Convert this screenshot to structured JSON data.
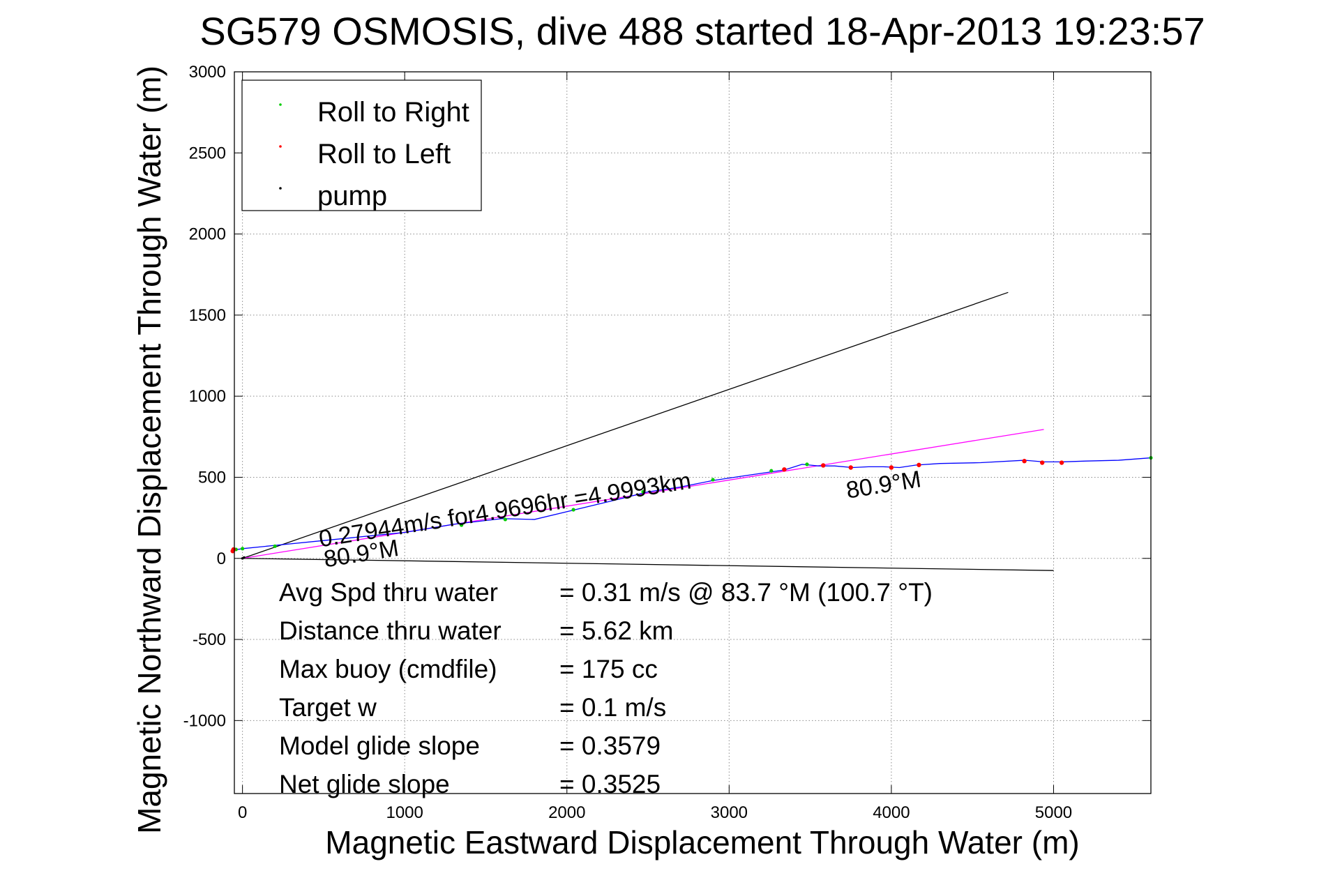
{
  "chart_data": {
    "type": "scatter",
    "title": "SG579 OSMOSIS, dive 488 started 18-Apr-2013 19:23:57",
    "xlabel": "Magnetic Eastward Displacement Through Water (m)",
    "ylabel": "Magnetic Northward Displacement Through Water (m)",
    "xlim": [
      -50,
      5600
    ],
    "ylim": [
      -1450,
      3000
    ],
    "x_ticks": [
      0,
      1000,
      2000,
      3000,
      4000,
      5000
    ],
    "y_ticks": [
      -1000,
      -500,
      0,
      500,
      1000,
      1500,
      2000,
      2500,
      3000
    ],
    "grid": true,
    "legend_position": "top-left",
    "legend": [
      {
        "label": "Roll to Right",
        "color": "#00cc00"
      },
      {
        "label": "Roll to Left",
        "color": "#ff0000"
      },
      {
        "label": "pump",
        "color": "#000000"
      }
    ],
    "track": {
      "color": "#0000ff",
      "points": [
        [
          -60,
          50
        ],
        [
          0,
          60
        ],
        [
          200,
          80
        ],
        [
          500,
          110
        ],
        [
          800,
          140
        ],
        [
          1000,
          160
        ],
        [
          1300,
          210
        ],
        [
          1600,
          245
        ],
        [
          1800,
          240
        ],
        [
          2050,
          300
        ],
        [
          2300,
          360
        ],
        [
          2500,
          410
        ],
        [
          2700,
          440
        ],
        [
          2900,
          480
        ],
        [
          3100,
          510
        ],
        [
          3340,
          545
        ],
        [
          3450,
          580
        ],
        [
          3550,
          570
        ],
        [
          3650,
          570
        ],
        [
          3760,
          560
        ],
        [
          3860,
          565
        ],
        [
          3950,
          565
        ],
        [
          4050,
          560
        ],
        [
          4150,
          575
        ],
        [
          4300,
          585
        ],
        [
          4550,
          590
        ],
        [
          4820,
          605
        ],
        [
          4940,
          595
        ],
        [
          5050,
          595
        ],
        [
          5200,
          600
        ],
        [
          5400,
          605
        ],
        [
          5600,
          620
        ]
      ]
    },
    "roll_right_points": [
      [
        -40,
        55
      ],
      [
        0,
        60
      ],
      [
        200,
        75
      ],
      [
        1350,
        205
      ],
      [
        1620,
        240
      ],
      [
        2040,
        300
      ],
      [
        2470,
        410
      ],
      [
        2900,
        485
      ],
      [
        3260,
        540
      ],
      [
        3480,
        580
      ],
      [
        5600,
        620
      ]
    ],
    "roll_left_points": [
      [
        -60,
        45
      ],
      [
        -55,
        55
      ],
      [
        3340,
        548
      ],
      [
        3580,
        573
      ],
      [
        3750,
        560
      ],
      [
        4000,
        560
      ],
      [
        4170,
        576
      ],
      [
        4820,
        600
      ],
      [
        4930,
        590
      ],
      [
        5050,
        590
      ]
    ],
    "pump_points": [
      [
        0,
        0
      ],
      [
        10,
        5
      ]
    ],
    "bounding_lines": [
      {
        "color": "#000000",
        "from": [
          0,
          0
        ],
        "to": [
          4720,
          1640
        ]
      },
      {
        "color": "#000000",
        "from": [
          0,
          0
        ],
        "to": [
          5000,
          -75
        ]
      }
    ],
    "average_line": {
      "color": "#ff00ff",
      "from": [
        0,
        0
      ],
      "to": [
        4940,
        795
      ]
    },
    "annotations": [
      {
        "text": "0.27944m/s for4.9696hr =4.9993km",
        "x": 480,
        "y": 70,
        "rotate": -9
      },
      {
        "text": "80.9°M",
        "x": 510,
        "y": -55,
        "rotate": -9
      },
      {
        "text": "80.9°M",
        "x": 3730,
        "y": 370,
        "rotate": -9
      }
    ],
    "stats": [
      {
        "label": "Avg Spd thru water",
        "value": "=  0.31 m/s @  83.7 °M (100.7 °T)"
      },
      {
        "label": "Distance thru water",
        "value": "=  5.62 km"
      },
      {
        "label": "Max buoy (cmdfile)",
        "value": "= 175 cc"
      },
      {
        "label": "Target w",
        "value": "= 0.1 m/s"
      },
      {
        "label": "Model glide slope",
        "value": "= 0.3579"
      },
      {
        "label": "Net glide slope",
        "value": "= 0.3525"
      }
    ]
  }
}
